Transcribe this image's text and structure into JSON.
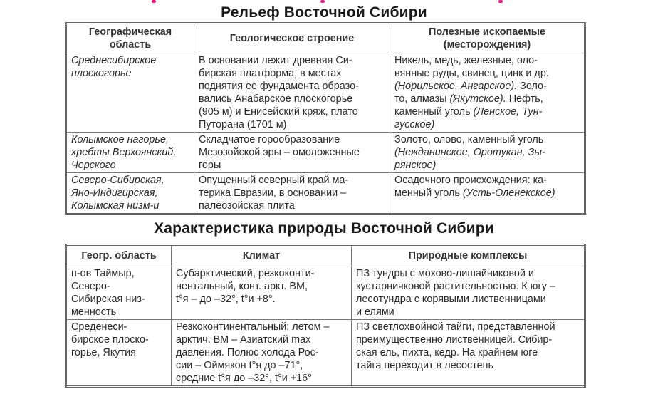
{
  "relief": {
    "title": "Рельеф  Восточной Сибири",
    "headers": [
      "Географическая\nобласть",
      "Геологическое строение",
      "Полезные ископаемые\n(месторождения)"
    ],
    "rows": [
      {
        "region": "Среднесибирское\nплоскогорье",
        "geology": "В основании лежит древняя Си-\nбирская платформа, в местах\nподнятия ее фундамента образо-\nвались Анабарское плоскогорье\n(905 м) и Енисейский кряж, плато\nПуторана (1701 м)",
        "minerals_a": "Никель, медь, железные, оло-\nвянные руды, свинец, цинк и др.\n",
        "minerals_b": "(Норильское, Ангарское).",
        "minerals_c": " Золо-\nто, алмазы ",
        "minerals_d": "(Якутское).",
        "minerals_e": "  Нефть,\nкаменный уголь ",
        "minerals_f": "(Ленское, Тун-\nгусское)"
      },
      {
        "region": "Колымское нагорье,\nхребты Верхоянский,\nЧерского",
        "geology": "Складчатое горообразование\nМезозойской эры – омоложенные\nгоры",
        "minerals_a": "Золото, олово, каменный уголь\n",
        "minerals_b": "(Нежданинское, Оротукан, Зы-\nрянское)"
      },
      {
        "region": "Северо-Сибирская,\nЯно-Индигирская,\nКолымская низм-и",
        "geology": "Опущенный северный край ма-\nтерика Евразии, в основании –\nпалеозойская плита",
        "minerals_a": "Осадочного происхождения: ка-\nменный уголь ",
        "minerals_b": "(Усть-Оленекское)"
      }
    ]
  },
  "nature": {
    "title": "Характеристика природы Восточной Сибири",
    "headers": [
      "Геогр. область",
      "Климат",
      "Природные комплексы"
    ],
    "rows": [
      {
        "region": "п-ов Таймыр,\nСеверо-\nСибирская низ-\nменность",
        "climate": "Субарктический, резкоконти-\nнентальный, конт. аркт. ВМ,\nt°я – до –32°, t°и +8°.",
        "complexes": "ПЗ тундры с мохово-лишайниковой и\nкустарничковой растительностью. К югу –\nлесотундра с корявыми лиственницами\nи елями"
      },
      {
        "region": "Среденеси-\nбирское плоско-\nгорье, Якутия",
        "climate": "Резкоконтинентальный; летом –\nарктич.  ВМ – Азиатский max\nдавления. Полюс холода Рос-\nсии – Оймякон t°я до –71°,\nсредние t°я до –32°, t°и +16°",
        "complexes": "ПЗ светлохвойной тайги, представленной\nпреимущественно лиственницей. Сибир-\nская ель, пихта, кедр. На крайнем юге\nтайга переходит в лесостепь"
      }
    ]
  }
}
